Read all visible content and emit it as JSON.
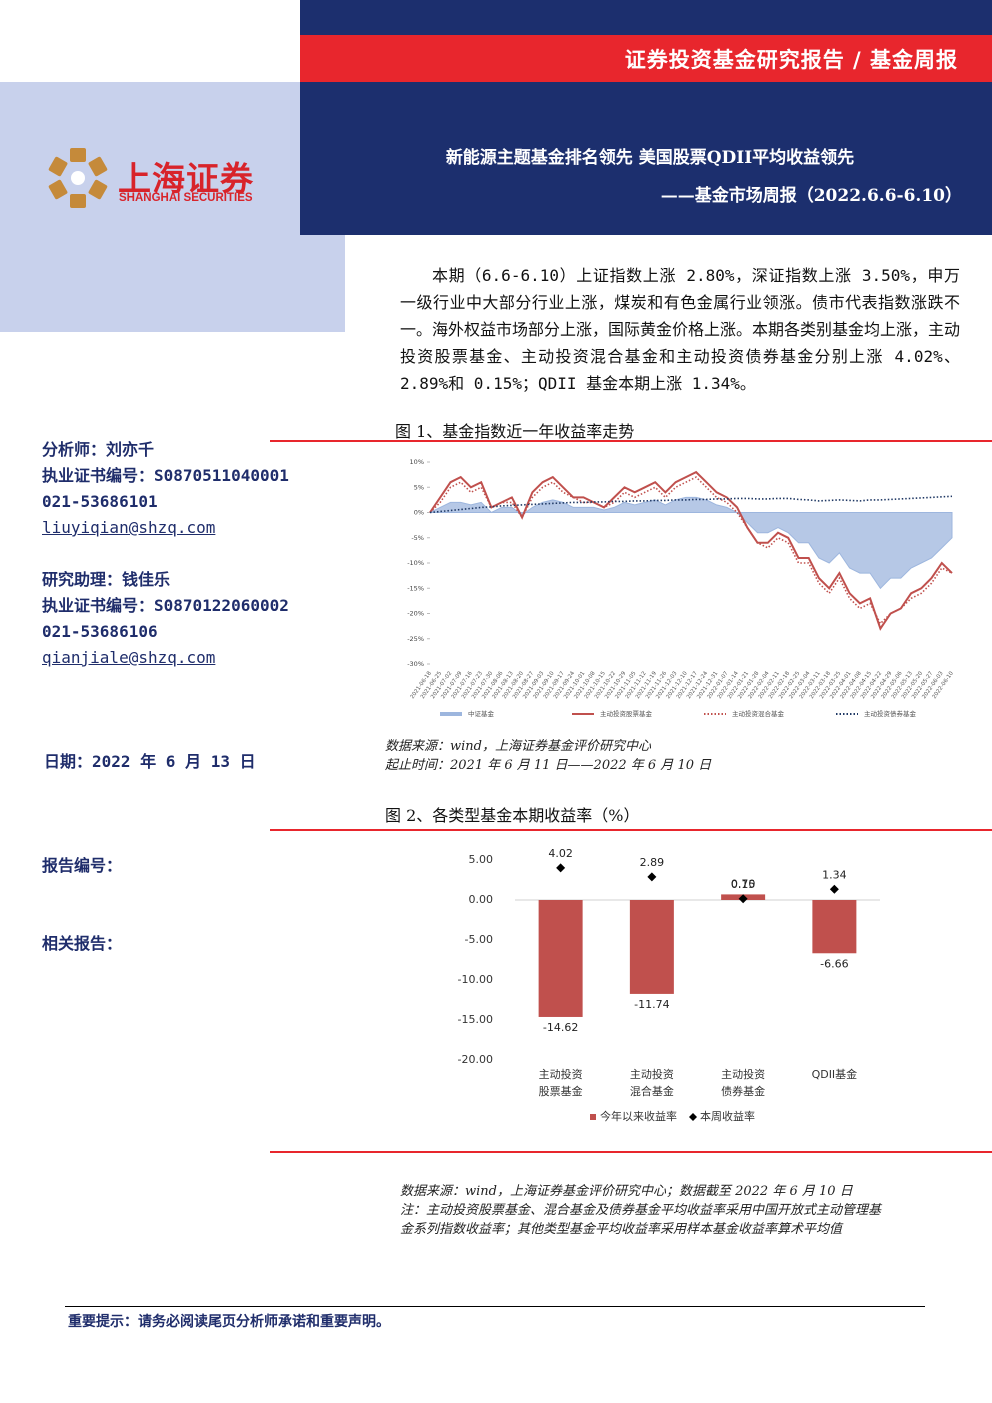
{
  "header": {
    "category": "证券投资基金研究报告 / 基金周报",
    "title": "新能源主题基金排名领先 美国股票QDII平均收益领先",
    "subtitle": "——基金市场周报（2022.6.6-6.10）"
  },
  "logo": {
    "name": "上海证券",
    "name_en": "SHANGHAI SECURITIES"
  },
  "summary": "本期（6.6-6.10）上证指数上涨 2.80%，深证指数上涨 3.50%，申万一级行业中大部分行业上涨，煤炭和有色金属行业领涨。债市代表指数涨跌不一。海外权益市场部分上涨，国际黄金价格上涨。本期各类别基金均上涨，主动投资股票基金、主动投资混合基金和主动投资债券基金分别上涨 4.02%、2.89%和 0.15%；QDII 基金本期上涨 1.34%。",
  "sidebar": {
    "analysts": [
      {
        "title": "分析师：刘亦千",
        "cert": "执业证书编号：S0870511040001",
        "phone": "021-53686101",
        "email": "liuyiqian@shzq.com"
      },
      {
        "title": "研究助理：钱佳乐",
        "cert": "执业证书编号：S0870122060002",
        "phone": "021-53686106",
        "email": "qianjiale@shzq.com"
      }
    ],
    "date": "日期：2022 年 6 月 13 日",
    "report_no": "报告编号：",
    "related": "相关报告："
  },
  "chart_data": [
    {
      "type": "line",
      "title": "图 1、基金指数近一年收益率走势",
      "categories": [
        "2021-06-18",
        "2021-06-25",
        "2021-07-02",
        "2021-07-09",
        "2021-07-16",
        "2021-07-23",
        "2021-07-30",
        "2021-08-06",
        "2021-08-13",
        "2021-08-20",
        "2021-08-27",
        "2021-09-03",
        "2021-09-10",
        "2021-09-17",
        "2021-09-24",
        "2021-10-01",
        "2021-10-08",
        "2021-10-15",
        "2021-10-22",
        "2021-10-29",
        "2021-11-05",
        "2021-11-12",
        "2021-11-19",
        "2021-11-26",
        "2021-12-03",
        "2021-12-10",
        "2021-12-17",
        "2021-12-24",
        "2021-12-31",
        "2022-01-07",
        "2022-01-14",
        "2022-01-21",
        "2022-01-28",
        "2022-02-04",
        "2022-02-11",
        "2022-02-18",
        "2022-02-25",
        "2022-03-04",
        "2022-03-11",
        "2022-03-18",
        "2022-03-25",
        "2022-04-01",
        "2022-04-08",
        "2022-04-15",
        "2022-04-22",
        "2022-04-29",
        "2022-05-06",
        "2022-05-13",
        "2022-05-20",
        "2022-05-27",
        "2022-06-03",
        "2022-06-10"
      ],
      "series": [
        {
          "name": "中证基金",
          "kind": "area",
          "color": "#9db6de",
          "values": [
            0,
            1,
            2,
            2,
            1.5,
            2,
            0,
            1,
            1,
            -0.5,
            1,
            2,
            2.5,
            2,
            1,
            1,
            1,
            0.5,
            1,
            2,
            1.5,
            2,
            2.5,
            1.5,
            2.5,
            3,
            3,
            2.5,
            1.5,
            1,
            0,
            -2,
            -4,
            -4,
            -3,
            -4,
            -6,
            -6,
            -9,
            -10,
            -8,
            -11,
            -12,
            -12,
            -15,
            -13,
            -13,
            -11,
            -10,
            -9,
            -7,
            -5
          ]
        },
        {
          "name": "主动投资股票基金",
          "kind": "solid",
          "color": "#c0504d",
          "values": [
            0,
            3,
            6,
            7,
            5,
            6,
            1,
            2,
            3,
            -1,
            4,
            6,
            7,
            5,
            3,
            3,
            2,
            1,
            3,
            5,
            4,
            5,
            6,
            4,
            6,
            7,
            8,
            6,
            4,
            3,
            1,
            -3,
            -6,
            -6,
            -4,
            -5,
            -9,
            -9,
            -13,
            -15,
            -12,
            -16,
            -18,
            -17,
            -23,
            -20,
            -19,
            -16,
            -15,
            -13,
            -10,
            -12
          ]
        },
        {
          "name": "主动投资混合基金",
          "kind": "dotted",
          "color": "#c0504d",
          "values": [
            0,
            2,
            5,
            6,
            4,
            5,
            1,
            2,
            2,
            -1,
            3,
            5,
            6,
            4,
            3,
            2,
            2,
            1,
            2,
            4,
            3,
            4,
            5,
            3,
            5,
            6,
            7,
            5,
            3,
            2,
            0,
            -3,
            -6,
            -7,
            -5,
            -6,
            -10,
            -10,
            -14,
            -16,
            -13,
            -17,
            -19,
            -18,
            -22,
            -20,
            -19,
            -17,
            -16,
            -14,
            -11,
            -12
          ]
        },
        {
          "name": "主动投资债券基金",
          "kind": "dotted",
          "color": "#1f3864",
          "values": [
            0,
            0.2,
            0.4,
            0.6,
            0.8,
            1,
            1.1,
            1.3,
            1.4,
            1.5,
            1.6,
            1.7,
            1.8,
            1.9,
            2,
            2,
            2.1,
            2.1,
            2.2,
            2.2,
            2.3,
            2.3,
            2.4,
            2.4,
            2.5,
            2.5,
            2.6,
            2.6,
            2.7,
            2.7,
            2.8,
            2.8,
            2.7,
            2.7,
            2.8,
            2.8,
            2.6,
            2.5,
            2.3,
            2.4,
            2.5,
            2.4,
            2.3,
            2.5,
            2.5,
            2.6,
            2.7,
            2.8,
            2.9,
            3,
            3.1,
            3.2
          ]
        }
      ],
      "ylim": [
        -30,
        10
      ],
      "yticks": [
        {
          "value": -30,
          "label": "-30%"
        },
        {
          "value": -25,
          "label": "-25%"
        },
        {
          "value": -20,
          "label": "-20%"
        },
        {
          "value": -15,
          "label": "-15%"
        },
        {
          "value": -10,
          "label": "-10%"
        },
        {
          "value": -5,
          "label": "-5%"
        },
        {
          "value": 0,
          "label": "0%"
        },
        {
          "value": 5,
          "label": "5%"
        },
        {
          "value": 10,
          "label": "10%"
        }
      ],
      "notes": [
        "数据来源：wind，上海证券基金评价研究中心",
        "起止时间：2021 年 6 月 11 日——2022 年 6 月 10 日"
      ]
    },
    {
      "type": "bar",
      "title": "图 2、各类型基金本期收益率（%）",
      "categories": [
        [
          "主动投资",
          "股票基金"
        ],
        [
          "主动投资",
          "混合基金"
        ],
        [
          "主动投资",
          "债券基金"
        ],
        [
          "QDII基金"
        ]
      ],
      "series": [
        {
          "name": "今年以来收益率",
          "kind": "bar",
          "color": "#c0504d",
          "values": [
            -14.62,
            -11.74,
            0.7,
            -6.66
          ],
          "value_labels": [
            "-14.62",
            "-11.74",
            "0.70",
            "-6.66"
          ]
        },
        {
          "name": "本周收益率",
          "kind": "marker",
          "color": "#000000",
          "values": [
            4.02,
            2.89,
            0.15,
            1.34
          ]
        }
      ],
      "ylim": [
        -20,
        5
      ],
      "yticks": [
        {
          "value": -20,
          "label": "-20.00"
        },
        {
          "value": -15,
          "label": "-15.00"
        },
        {
          "value": -10,
          "label": "-10.00"
        },
        {
          "value": -5,
          "label": "-5.00"
        },
        {
          "value": 0,
          "label": "0.00"
        },
        {
          "value": 5,
          "label": "5.00"
        }
      ],
      "notes": [
        "数据来源：wind，上海证券基金评价研究中心；数据截至 2022 年 6 月 10 日",
        "注：主动投资股票基金、混合基金及债券基金平均收益率采用中国开放式主动管理基",
        "金系列指数收益率；其他类型基金平均收益率采用样本基金收益率算术平均值"
      ]
    }
  ],
  "footer": "重要提示：请务必阅读尾页分析师承诺和重要声明。"
}
